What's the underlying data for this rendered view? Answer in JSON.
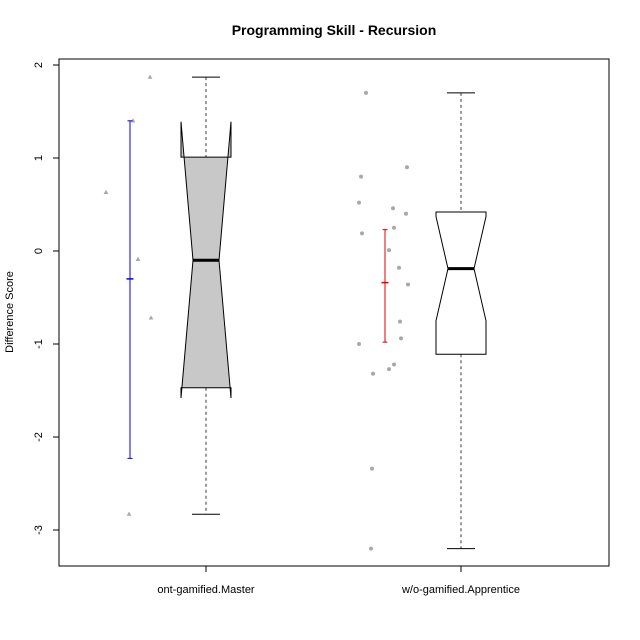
{
  "chart_data": {
    "type": "boxplot",
    "title": "Programming Skill - Recursion",
    "xlabel": "",
    "ylabel": "Difference Score",
    "ylim": [
      -3.4,
      2.05
    ],
    "yticks": [
      -3,
      -2,
      -1,
      0,
      1,
      2
    ],
    "ytick_labels": [
      "-3",
      "-2",
      "-1",
      "0",
      "1",
      "2"
    ],
    "grid": false,
    "categories": [
      "ont-gamified.Master",
      "w/o-gamified.Apprentice"
    ],
    "groups": [
      {
        "name": "ont-gamified.Master",
        "box_fill": "#c8c8c8",
        "whisker_low": -2.83,
        "q1": -1.47,
        "median": -0.1,
        "q3": 1.01,
        "whisker_high": 1.87,
        "notch_low": -1.58,
        "notch_high": 1.39,
        "points": [
          1.87,
          1.4,
          0.63,
          -0.09,
          -0.72,
          -2.83
        ],
        "point_marker": "triangle",
        "point_color": "#a8a8a8",
        "mean": -0.3,
        "ci_low": -2.23,
        "ci_high": 1.4,
        "ci_color": "#0000ff"
      },
      {
        "name": "w/o-gamified.Apprentice",
        "box_fill": "#ffffff",
        "whisker_low": -3.2,
        "q1": -1.11,
        "median": -0.19,
        "q3": 0.42,
        "whisker_high": 1.7,
        "notch_low": -0.75,
        "notch_high": 0.37,
        "points": [
          1.7,
          0.9,
          0.8,
          0.52,
          0.46,
          0.4,
          0.25,
          0.19,
          0.01,
          -0.18,
          -0.36,
          -0.76,
          -0.94,
          -1.0,
          -1.22,
          -1.27,
          -1.32,
          -2.34,
          -3.2
        ],
        "point_marker": "circle",
        "point_color": "#a8a8a8",
        "mean": -0.34,
        "ci_low": -0.98,
        "ci_high": 0.23,
        "ci_color": "#dd0000"
      }
    ]
  }
}
